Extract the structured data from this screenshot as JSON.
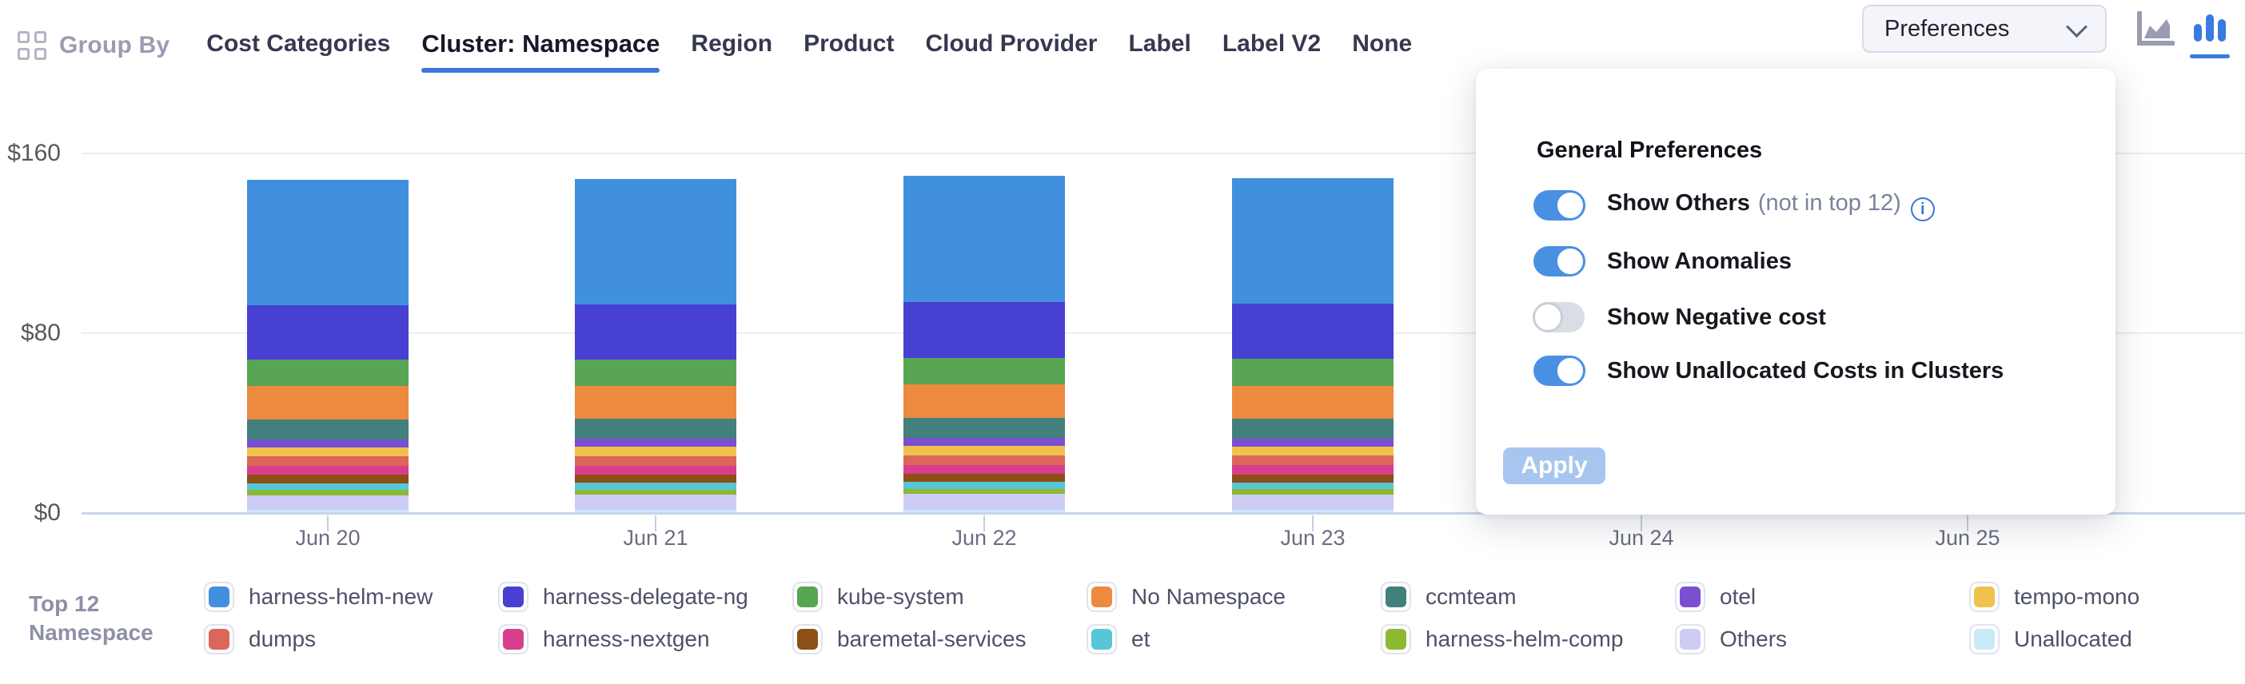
{
  "header": {
    "group_by": {
      "label": "Group By"
    },
    "tabs": [
      {
        "label": "Cost Categories",
        "active": false
      },
      {
        "label": "Cluster: Namespace",
        "active": true
      },
      {
        "label": "Region",
        "active": false
      },
      {
        "label": "Product",
        "active": false
      },
      {
        "label": "Cloud Provider",
        "active": false
      },
      {
        "label": "Label",
        "active": false
      },
      {
        "label": "Label V2",
        "active": false
      },
      {
        "label": "None",
        "active": false
      }
    ],
    "preferences_button": {
      "label": "Preferences"
    },
    "chart_type_switcher": {
      "icons": [
        "area-chart-icon",
        "column-chart-icon"
      ],
      "active": "column-chart-icon"
    }
  },
  "preferences_panel": {
    "title": "General Preferences",
    "toggles": [
      {
        "label": "Show Others",
        "suffix": "(not in top 12)",
        "has_info_icon": true,
        "on": true
      },
      {
        "label": "Show Anomalies",
        "suffix": "",
        "has_info_icon": false,
        "on": true
      },
      {
        "label": "Show Negative cost",
        "suffix": "",
        "has_info_icon": false,
        "on": false
      },
      {
        "label": "Show Unallocated Costs in Clusters",
        "suffix": "",
        "has_info_icon": false,
        "on": true
      }
    ],
    "apply_button": {
      "label": "Apply",
      "disabled": true
    }
  },
  "legend": {
    "group_title_line1": "Top 12",
    "group_title_line2": "Namespace"
  },
  "colors": {
    "accent_blue": "#3b76dd",
    "toggle_on": "#4a90e2",
    "axis_line": "#c9d5ea",
    "gridline": "#ececf1"
  },
  "chart_data": {
    "type": "bar",
    "stacked": true,
    "title": "",
    "xlabel": "",
    "ylabel": "",
    "ylim": [
      0,
      160
    ],
    "grid": "horizontal",
    "legend_position": "bottom",
    "categories": [
      "Jun 20",
      "Jun 21",
      "Jun 22",
      "Jun 23",
      "Jun 24",
      "Jun 25"
    ],
    "y_ticks": [
      {
        "label": "$0",
        "value": 0
      },
      {
        "label": "$80",
        "value": 80
      },
      {
        "label": "$160",
        "value": 160
      }
    ],
    "series": [
      {
        "name": "harness-helm-new",
        "color": "#4190dd",
        "values": [
          55.5,
          55.6,
          56.2,
          55.9,
          0,
          0
        ]
      },
      {
        "name": "harness-delegate-ng",
        "color": "#4740d2",
        "values": [
          24.5,
          24.6,
          24.8,
          24.7,
          0,
          0
        ]
      },
      {
        "name": "kube-system",
        "color": "#58a553",
        "values": [
          11.7,
          11.7,
          11.8,
          11.8,
          0,
          0
        ]
      },
      {
        "name": "No Namespace",
        "color": "#ed8a3f",
        "values": [
          14.7,
          14.7,
          14.8,
          14.7,
          0,
          0
        ]
      },
      {
        "name": "ccmteam",
        "color": "#41807c",
        "values": [
          8.9,
          8.9,
          9.0,
          8.9,
          0,
          0
        ]
      },
      {
        "name": "otel",
        "color": "#7a4fd0",
        "values": [
          3.6,
          3.6,
          3.7,
          3.6,
          0,
          0
        ]
      },
      {
        "name": "tempo-mono",
        "color": "#f0c24d",
        "values": [
          4.0,
          4.0,
          4.0,
          4.0,
          0,
          0
        ]
      },
      {
        "name": "dumps",
        "color": "#dc6659",
        "values": [
          4.3,
          4.3,
          4.3,
          4.3,
          0,
          0
        ]
      },
      {
        "name": "harness-nextgen",
        "color": "#d93d8d",
        "values": [
          4.0,
          4.0,
          4.0,
          4.0,
          0,
          0
        ]
      },
      {
        "name": "baremetal-services",
        "color": "#8c4f16",
        "values": [
          3.7,
          3.7,
          3.7,
          3.7,
          0,
          0
        ]
      },
      {
        "name": "et",
        "color": "#57c6d7",
        "values": [
          3.0,
          3.0,
          3.0,
          3.0,
          0,
          0
        ]
      },
      {
        "name": "harness-helm-comp",
        "color": "#8cb833",
        "values": [
          2.2,
          2.2,
          2.2,
          2.2,
          0,
          0
        ]
      },
      {
        "name": "Others",
        "color": "#cdccf5",
        "values": [
          6.5,
          6.7,
          7.0,
          6.8,
          0,
          0
        ]
      },
      {
        "name": "Unallocated",
        "color": "#c9e9f9",
        "values": [
          1.5,
          1.5,
          1.5,
          1.5,
          0,
          0
        ]
      }
    ]
  }
}
